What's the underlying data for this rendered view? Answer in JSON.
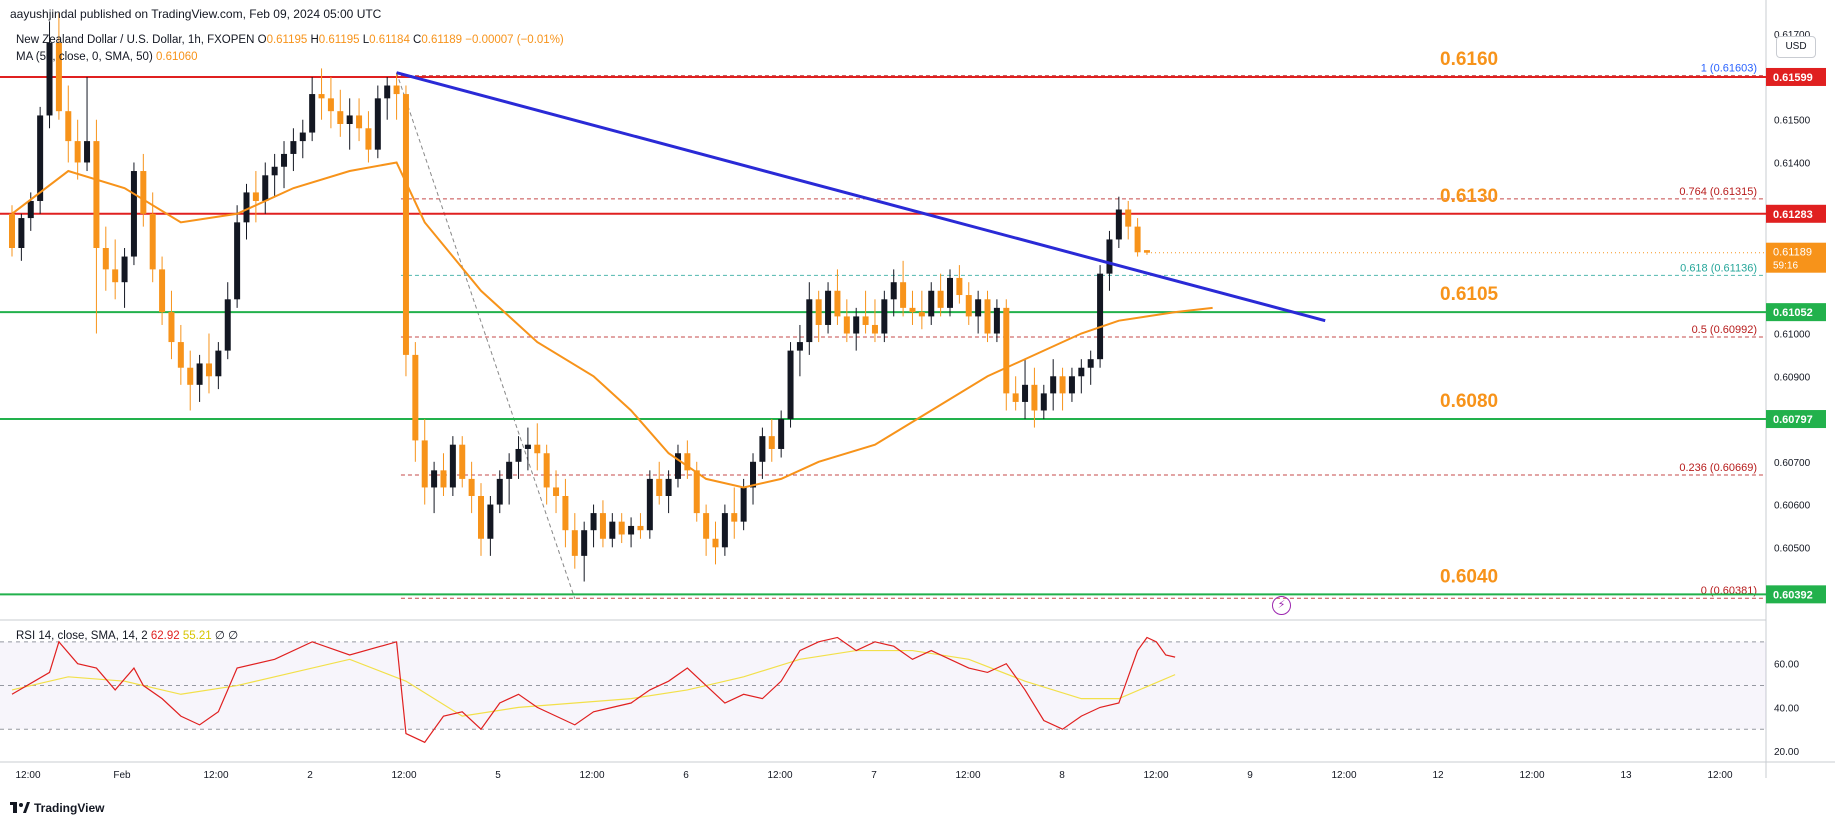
{
  "header": {
    "publisher": "aayushjindal published on TradingView.com, Feb 09, 2024 05:00 UTC",
    "symbol": "New Zealand Dollar / U.S. Dollar, 1h, FXOPEN",
    "o_label": "O",
    "o_value": "0.61195",
    "h_label": "H",
    "h_value": "0.61195",
    "l_label": "L",
    "l_value": "0.61184",
    "c_label": "C",
    "c_value": "0.61189",
    "change": "−0.00007 (−0.01%)",
    "ma_label": "MA (50, close, 0, SMA, 50)",
    "ma_value": "0.61060",
    "rsi_label": "RSI",
    "rsi_params": "14, close, SMA, 14, 2",
    "rsi_value": "62.92",
    "rsi_sma_value": "55.21",
    "rsi_extra": "∅ ∅"
  },
  "currency_button": "USD",
  "logo_text": "TradingView",
  "colors": {
    "bull": "#089981",
    "bear": "#f7931a",
    "candle_body": "#131722",
    "ma": "#f7931a",
    "trendline": "#2a2ad6",
    "resistance": "#e02020",
    "support": "#22b14c",
    "rsi": "#e02020",
    "rsi_sma": "#f2e04a",
    "fib_dash": "#b71c1c"
  },
  "chart_data": {
    "type": "candlestick",
    "price_axis": {
      "ylim": [
        0.6033,
        0.6178
      ],
      "ticks": [
        "0.61700",
        "0.61500",
        "0.61400",
        "0.61000",
        "0.60900",
        "0.60700",
        "0.60600",
        "0.60500"
      ]
    },
    "time_axis": {
      "labels": [
        "12:00",
        "Feb",
        "12:00",
        "2",
        "12:00",
        "5",
        "12:00",
        "6",
        "12:00",
        "7",
        "12:00",
        "8",
        "12:00",
        "9",
        "12:00",
        "12",
        "12:00",
        "13",
        "12:00"
      ]
    },
    "key_levels": [
      {
        "label": "0.6160",
        "value": 0.616,
        "kind": "resistance",
        "axis_tag": "0.61599"
      },
      {
        "label": "0.6130",
        "value": 0.6128,
        "kind": "resistance",
        "axis_tag": "0.61283"
      },
      {
        "label": "0.6105",
        "value": 0.6105,
        "kind": "support",
        "axis_tag": "0.61052"
      },
      {
        "label": "0.6080",
        "value": 0.608,
        "kind": "support",
        "axis_tag": "0.60797"
      },
      {
        "label": "0.6040",
        "value": 0.6039,
        "kind": "support",
        "axis_tag": "0.60392"
      }
    ],
    "fib_levels": [
      {
        "ratio": "1",
        "value": 0.61603,
        "label": "1 (0.61603)"
      },
      {
        "ratio": "0.764",
        "value": 0.61315,
        "label": "0.764 (0.61315)"
      },
      {
        "ratio": "0.618",
        "value": 0.61136,
        "label": "0.618 (0.61136)"
      },
      {
        "ratio": "0.5",
        "value": 0.60992,
        "label": "0.5 (0.60992)"
      },
      {
        "ratio": "0.236",
        "value": 0.60669,
        "label": "0.236 (0.60669)"
      },
      {
        "ratio": "0",
        "value": 0.60381,
        "label": "0 (0.60381)"
      }
    ],
    "current_price": {
      "value": "0.61189",
      "countdown": "59:16",
      "price": 0.61189
    },
    "trendline": {
      "from_index": 41,
      "from_price": 0.6161,
      "to_index": 140,
      "to_price": 0.6103
    },
    "candles": [
      [
        0.6128,
        0.613,
        0.6118,
        0.612
      ],
      [
        0.612,
        0.6128,
        0.6117,
        0.6127
      ],
      [
        0.6127,
        0.6133,
        0.6124,
        0.6131
      ],
      [
        0.6131,
        0.6153,
        0.6128,
        0.6151
      ],
      [
        0.6151,
        0.6173,
        0.6148,
        0.6168
      ],
      [
        0.6168,
        0.6175,
        0.615,
        0.6152
      ],
      [
        0.6152,
        0.6158,
        0.614,
        0.6145
      ],
      [
        0.6145,
        0.615,
        0.6136,
        0.614
      ],
      [
        0.614,
        0.616,
        0.6138,
        0.6145
      ],
      [
        0.6145,
        0.615,
        0.61,
        0.612
      ],
      [
        0.612,
        0.6125,
        0.611,
        0.6115
      ],
      [
        0.6115,
        0.6122,
        0.6108,
        0.6112
      ],
      [
        0.6112,
        0.612,
        0.6106,
        0.6118
      ],
      [
        0.6118,
        0.614,
        0.6116,
        0.6138
      ],
      [
        0.6138,
        0.6142,
        0.6125,
        0.6128
      ],
      [
        0.6128,
        0.6133,
        0.6112,
        0.6115
      ],
      [
        0.6115,
        0.6118,
        0.6102,
        0.6105
      ],
      [
        0.6105,
        0.611,
        0.6094,
        0.6098
      ],
      [
        0.6098,
        0.6102,
        0.6088,
        0.6092
      ],
      [
        0.6092,
        0.6096,
        0.6082,
        0.6088
      ],
      [
        0.6088,
        0.6095,
        0.6084,
        0.6093
      ],
      [
        0.6093,
        0.61,
        0.6086,
        0.609
      ],
      [
        0.609,
        0.6098,
        0.6087,
        0.6096
      ],
      [
        0.6096,
        0.6112,
        0.6094,
        0.6108
      ],
      [
        0.6108,
        0.613,
        0.6106,
        0.6126
      ],
      [
        0.6126,
        0.6135,
        0.6122,
        0.6133
      ],
      [
        0.6133,
        0.6138,
        0.6126,
        0.6131
      ],
      [
        0.6131,
        0.614,
        0.6128,
        0.6137
      ],
      [
        0.6137,
        0.6142,
        0.6132,
        0.6139
      ],
      [
        0.6139,
        0.6145,
        0.6134,
        0.6142
      ],
      [
        0.6142,
        0.6148,
        0.6138,
        0.6145
      ],
      [
        0.6145,
        0.615,
        0.6141,
        0.6147
      ],
      [
        0.6147,
        0.616,
        0.6145,
        0.6156
      ],
      [
        0.6156,
        0.6162,
        0.615,
        0.6155
      ],
      [
        0.6155,
        0.616,
        0.6148,
        0.6152
      ],
      [
        0.6152,
        0.6157,
        0.6146,
        0.6149
      ],
      [
        0.6149,
        0.6155,
        0.6143,
        0.6151
      ],
      [
        0.6151,
        0.6155,
        0.6145,
        0.6148
      ],
      [
        0.6148,
        0.6152,
        0.614,
        0.6143
      ],
      [
        0.6143,
        0.6158,
        0.6141,
        0.6155
      ],
      [
        0.6155,
        0.616,
        0.615,
        0.6158
      ],
      [
        0.6158,
        0.6161,
        0.615,
        0.6156
      ],
      [
        0.6156,
        0.6158,
        0.609,
        0.6095
      ],
      [
        0.6095,
        0.6098,
        0.607,
        0.6075
      ],
      [
        0.6075,
        0.608,
        0.606,
        0.6064
      ],
      [
        0.6064,
        0.607,
        0.6058,
        0.6068
      ],
      [
        0.6068,
        0.6072,
        0.6062,
        0.6064
      ],
      [
        0.6064,
        0.6076,
        0.6062,
        0.6074
      ],
      [
        0.6074,
        0.6076,
        0.6064,
        0.6066
      ],
      [
        0.6066,
        0.607,
        0.6058,
        0.6062
      ],
      [
        0.6062,
        0.6065,
        0.6048,
        0.6052
      ],
      [
        0.6052,
        0.6062,
        0.6048,
        0.606
      ],
      [
        0.606,
        0.6068,
        0.6058,
        0.6066
      ],
      [
        0.6066,
        0.6072,
        0.606,
        0.607
      ],
      [
        0.607,
        0.6076,
        0.6066,
        0.6073
      ],
      [
        0.6073,
        0.6078,
        0.6068,
        0.6074
      ],
      [
        0.6074,
        0.6079,
        0.6068,
        0.6072
      ],
      [
        0.6072,
        0.6074,
        0.606,
        0.6064
      ],
      [
        0.6064,
        0.6068,
        0.6058,
        0.6062
      ],
      [
        0.6062,
        0.6066,
        0.605,
        0.6054
      ],
      [
        0.6054,
        0.6058,
        0.6045,
        0.6048
      ],
      [
        0.6048,
        0.6056,
        0.6042,
        0.6054
      ],
      [
        0.6054,
        0.606,
        0.605,
        0.6058
      ],
      [
        0.6058,
        0.6061,
        0.605,
        0.6052
      ],
      [
        0.6052,
        0.6058,
        0.605,
        0.6056
      ],
      [
        0.6056,
        0.6058,
        0.6051,
        0.6053
      ],
      [
        0.6053,
        0.6057,
        0.605,
        0.6055
      ],
      [
        0.6055,
        0.6058,
        0.6052,
        0.6054
      ],
      [
        0.6054,
        0.6068,
        0.6052,
        0.6066
      ],
      [
        0.6066,
        0.607,
        0.606,
        0.6062
      ],
      [
        0.6062,
        0.6068,
        0.6058,
        0.6066
      ],
      [
        0.6066,
        0.6074,
        0.6064,
        0.6072
      ],
      [
        0.6072,
        0.6075,
        0.6066,
        0.6068
      ],
      [
        0.6068,
        0.607,
        0.6056,
        0.6058
      ],
      [
        0.6058,
        0.606,
        0.6048,
        0.6052
      ],
      [
        0.6052,
        0.6056,
        0.6046,
        0.605
      ],
      [
        0.605,
        0.606,
        0.6048,
        0.6058
      ],
      [
        0.6058,
        0.6064,
        0.6052,
        0.6056
      ],
      [
        0.6056,
        0.6066,
        0.6054,
        0.6064
      ],
      [
        0.6064,
        0.6072,
        0.606,
        0.607
      ],
      [
        0.607,
        0.6078,
        0.6066,
        0.6076
      ],
      [
        0.6076,
        0.608,
        0.607,
        0.6073
      ],
      [
        0.6073,
        0.6082,
        0.6071,
        0.608
      ],
      [
        0.608,
        0.6098,
        0.6078,
        0.6096
      ],
      [
        0.6096,
        0.6102,
        0.609,
        0.6098
      ],
      [
        0.6098,
        0.6112,
        0.6095,
        0.6108
      ],
      [
        0.6108,
        0.611,
        0.6098,
        0.6102
      ],
      [
        0.6102,
        0.6112,
        0.61,
        0.611
      ],
      [
        0.611,
        0.6115,
        0.6102,
        0.6104
      ],
      [
        0.6104,
        0.6108,
        0.6098,
        0.61
      ],
      [
        0.61,
        0.6106,
        0.6096,
        0.6104
      ],
      [
        0.6104,
        0.611,
        0.61,
        0.6102
      ],
      [
        0.6102,
        0.6108,
        0.6098,
        0.61
      ],
      [
        0.61,
        0.611,
        0.6098,
        0.6108
      ],
      [
        0.6108,
        0.6115,
        0.6104,
        0.6112
      ],
      [
        0.6112,
        0.6117,
        0.6104,
        0.6106
      ],
      [
        0.6106,
        0.611,
        0.6102,
        0.6105
      ],
      [
        0.6105,
        0.611,
        0.6101,
        0.6104
      ],
      [
        0.6104,
        0.6112,
        0.6102,
        0.611
      ],
      [
        0.611,
        0.6114,
        0.6104,
        0.6106
      ],
      [
        0.6106,
        0.6115,
        0.6104,
        0.6113
      ],
      [
        0.6113,
        0.6116,
        0.6107,
        0.6109
      ],
      [
        0.6109,
        0.6112,
        0.6102,
        0.6104
      ],
      [
        0.6104,
        0.611,
        0.61,
        0.6108
      ],
      [
        0.6108,
        0.611,
        0.6098,
        0.61
      ],
      [
        0.61,
        0.6108,
        0.6098,
        0.6106
      ],
      [
        0.6106,
        0.6108,
        0.6082,
        0.6086
      ],
      [
        0.6086,
        0.609,
        0.6082,
        0.6084
      ],
      [
        0.6084,
        0.6094,
        0.608,
        0.6088
      ],
      [
        0.6088,
        0.6092,
        0.6078,
        0.6082
      ],
      [
        0.6082,
        0.6088,
        0.608,
        0.6086
      ],
      [
        0.6086,
        0.6094,
        0.6082,
        0.609
      ],
      [
        0.609,
        0.6092,
        0.6082,
        0.6086
      ],
      [
        0.6086,
        0.6092,
        0.6084,
        0.609
      ],
      [
        0.609,
        0.6094,
        0.6086,
        0.6092
      ],
      [
        0.6092,
        0.6096,
        0.6088,
        0.6094
      ],
      [
        0.6094,
        0.6116,
        0.6092,
        0.6114
      ],
      [
        0.6114,
        0.6124,
        0.611,
        0.6122
      ],
      [
        0.6122,
        0.6132,
        0.612,
        0.6129
      ],
      [
        0.6129,
        0.6131,
        0.6122,
        0.6125
      ],
      [
        0.6125,
        0.6127,
        0.6118,
        0.6119
      ],
      [
        0.61195,
        0.61195,
        0.61184,
        0.61189
      ]
    ],
    "ma50": [
      [
        0,
        0.6128
      ],
      [
        6,
        0.6138
      ],
      [
        12,
        0.6134
      ],
      [
        18,
        0.6126
      ],
      [
        24,
        0.6128
      ],
      [
        30,
        0.6134
      ],
      [
        36,
        0.6138
      ],
      [
        41,
        0.614
      ],
      [
        44,
        0.6126
      ],
      [
        50,
        0.611
      ],
      [
        56,
        0.6098
      ],
      [
        62,
        0.609
      ],
      [
        66,
        0.6082
      ],
      [
        70,
        0.6072
      ],
      [
        74,
        0.6066
      ],
      [
        78,
        0.6064
      ],
      [
        82,
        0.6066
      ],
      [
        86,
        0.607
      ],
      [
        92,
        0.6074
      ],
      [
        98,
        0.6082
      ],
      [
        104,
        0.609
      ],
      [
        110,
        0.6096
      ],
      [
        114,
        0.61
      ],
      [
        118,
        0.6103
      ],
      [
        124,
        0.6105
      ],
      [
        128,
        0.6106
      ]
    ],
    "rsi": {
      "axis_ticks": [
        "60.00",
        "40.00",
        "20.00"
      ],
      "bands": [
        70,
        50,
        30
      ],
      "values": [
        [
          0,
          46
        ],
        [
          4,
          56
        ],
        [
          5,
          70
        ],
        [
          7,
          60
        ],
        [
          9,
          58
        ],
        [
          11,
          48
        ],
        [
          13,
          58
        ],
        [
          14,
          50
        ],
        [
          16,
          44
        ],
        [
          18,
          36
        ],
        [
          20,
          32
        ],
        [
          22,
          38
        ],
        [
          24,
          58
        ],
        [
          28,
          62
        ],
        [
          32,
          70
        ],
        [
          36,
          64
        ],
        [
          41,
          70
        ],
        [
          42,
          28
        ],
        [
          44,
          24
        ],
        [
          46,
          36
        ],
        [
          48,
          38
        ],
        [
          50,
          30
        ],
        [
          52,
          42
        ],
        [
          54,
          46
        ],
        [
          56,
          40
        ],
        [
          58,
          36
        ],
        [
          60,
          32
        ],
        [
          62,
          38
        ],
        [
          64,
          40
        ],
        [
          66,
          42
        ],
        [
          68,
          48
        ],
        [
          70,
          52
        ],
        [
          72,
          58
        ],
        [
          74,
          50
        ],
        [
          76,
          42
        ],
        [
          78,
          46
        ],
        [
          80,
          44
        ],
        [
          82,
          52
        ],
        [
          84,
          66
        ],
        [
          86,
          70
        ],
        [
          88,
          72
        ],
        [
          90,
          66
        ],
        [
          92,
          70
        ],
        [
          94,
          68
        ],
        [
          96,
          62
        ],
        [
          98,
          66
        ],
        [
          100,
          62
        ],
        [
          102,
          58
        ],
        [
          104,
          56
        ],
        [
          106,
          60
        ],
        [
          108,
          48
        ],
        [
          110,
          34
        ],
        [
          112,
          30
        ],
        [
          114,
          36
        ],
        [
          116,
          40
        ],
        [
          118,
          42
        ],
        [
          120,
          66
        ],
        [
          121,
          72
        ],
        [
          122,
          70
        ],
        [
          123,
          64
        ],
        [
          124,
          63
        ]
      ],
      "sma_values": [
        [
          0,
          48
        ],
        [
          6,
          54
        ],
        [
          12,
          52
        ],
        [
          18,
          46
        ],
        [
          24,
          50
        ],
        [
          30,
          56
        ],
        [
          36,
          62
        ],
        [
          42,
          52
        ],
        [
          48,
          36
        ],
        [
          54,
          40
        ],
        [
          60,
          42
        ],
        [
          66,
          44
        ],
        [
          72,
          48
        ],
        [
          78,
          54
        ],
        [
          84,
          62
        ],
        [
          90,
          66
        ],
        [
          96,
          66
        ],
        [
          102,
          62
        ],
        [
          108,
          52
        ],
        [
          114,
          44
        ],
        [
          118,
          44
        ],
        [
          124,
          55
        ]
      ]
    }
  }
}
